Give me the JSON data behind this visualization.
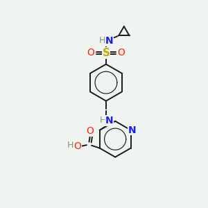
{
  "bg_color": "#f0f4f0",
  "atom_colors": {
    "C": "#000000",
    "H": "#7a9a7a",
    "N": "#1a1aff",
    "O": "#ff2200",
    "S": "#ccaa00"
  },
  "bond_color": "#1a1a1a",
  "bond_lw": 1.4
}
